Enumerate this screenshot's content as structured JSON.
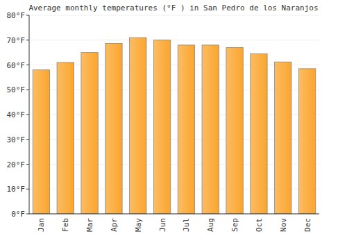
{
  "chart_data": {
    "type": "bar",
    "title": "Average monthly temperatures (°F ) in San Pedro de los Naranjos",
    "categories": [
      "Jan",
      "Feb",
      "Mar",
      "Apr",
      "May",
      "Jun",
      "Jul",
      "Aug",
      "Sep",
      "Oct",
      "Nov",
      "Dec"
    ],
    "values": [
      58,
      61,
      65,
      68.7,
      71,
      70,
      68,
      68,
      67,
      64.5,
      61.2,
      58.5
    ],
    "color": "#fba52d",
    "ylim": [
      0,
      80
    ],
    "yticks": [
      {
        "value": 0,
        "label": "0°F"
      },
      {
        "value": 10,
        "label": "10°F"
      },
      {
        "value": 20,
        "label": "20°F"
      },
      {
        "value": 30,
        "label": "30°F"
      },
      {
        "value": 40,
        "label": "40°F"
      },
      {
        "value": 50,
        "label": "50°F"
      },
      {
        "value": 60,
        "label": "60°F"
      },
      {
        "value": 70,
        "label": "70°F"
      },
      {
        "value": 80,
        "label": "80°F"
      }
    ],
    "grid": true
  }
}
